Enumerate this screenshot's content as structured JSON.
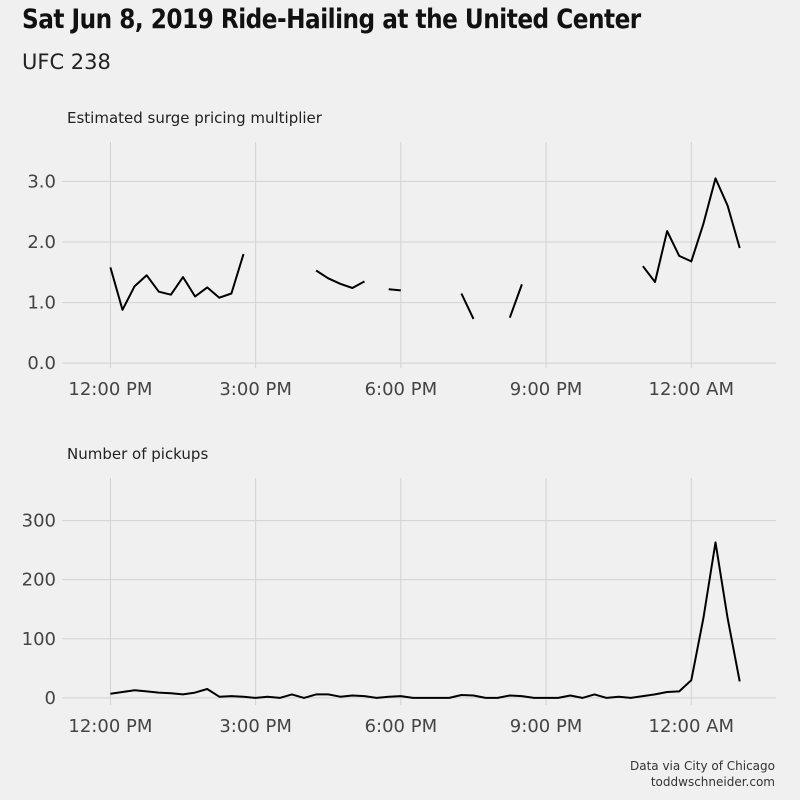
{
  "title": "Sat Jun 8, 2019 Ride-Hailing at the United Center",
  "subtitle": "UFC 238",
  "caption": [
    "Data via City of Chicago",
    "toddwschneider.com"
  ],
  "chart_data": [
    {
      "type": "line",
      "title": "Estimated surge pricing multiplier",
      "x_ticks": [
        "12:00 PM",
        "3:00 PM",
        "6:00 PM",
        "9:00 PM",
        "12:00 AM"
      ],
      "y_ticks": [
        "0.0",
        "1.0",
        "2.0",
        "3.0"
      ],
      "xlim_hours": [
        11.0,
        25.75
      ],
      "ylim": [
        -0.08,
        3.65
      ],
      "grid": true,
      "series": [
        {
          "color": "#000000",
          "values": [
            [
              12.0,
              1.58
            ],
            [
              12.25,
              0.88
            ],
            [
              12.5,
              1.27
            ],
            [
              12.75,
              1.45
            ],
            [
              13.0,
              1.18
            ],
            [
              13.25,
              1.13
            ],
            [
              13.5,
              1.42
            ],
            [
              13.75,
              1.1
            ],
            [
              14.0,
              1.25
            ],
            [
              14.25,
              1.08
            ],
            [
              14.5,
              1.15
            ],
            [
              14.75,
              1.8
            ],
            [
              15.0,
              null
            ],
            [
              15.25,
              null
            ],
            [
              15.5,
              null
            ],
            [
              15.75,
              null
            ],
            [
              16.0,
              null
            ],
            [
              16.25,
              1.53
            ],
            [
              16.5,
              1.4
            ],
            [
              16.75,
              1.31
            ],
            [
              17.0,
              1.24
            ],
            [
              17.25,
              1.35
            ],
            [
              17.5,
              null
            ],
            [
              17.75,
              1.22
            ],
            [
              18.0,
              1.2
            ],
            [
              18.25,
              null
            ],
            [
              18.5,
              null
            ],
            [
              18.75,
              null
            ],
            [
              19.0,
              null
            ],
            [
              19.25,
              1.15
            ],
            [
              19.5,
              0.73
            ],
            [
              19.75,
              null
            ],
            [
              20.0,
              null
            ],
            [
              20.25,
              0.75
            ],
            [
              20.5,
              1.3
            ],
            [
              20.75,
              null
            ],
            [
              21.0,
              null
            ],
            [
              21.25,
              null
            ],
            [
              21.5,
              null
            ],
            [
              21.75,
              null
            ],
            [
              22.0,
              null
            ],
            [
              22.25,
              null
            ],
            [
              22.5,
              null
            ],
            [
              22.75,
              null
            ],
            [
              23.0,
              1.6
            ],
            [
              23.25,
              1.34
            ],
            [
              23.5,
              2.18
            ],
            [
              23.75,
              1.77
            ],
            [
              24.0,
              1.68
            ],
            [
              24.25,
              2.3
            ],
            [
              24.5,
              3.05
            ],
            [
              24.75,
              2.6
            ],
            [
              25.0,
              1.9
            ]
          ]
        }
      ]
    },
    {
      "type": "line",
      "title": "Number of pickups",
      "x_ticks": [
        "12:00 PM",
        "3:00 PM",
        "6:00 PM",
        "9:00 PM",
        "12:00 AM"
      ],
      "y_ticks": [
        "0",
        "100",
        "200",
        "300"
      ],
      "xlim_hours": [
        11.0,
        25.75
      ],
      "ylim": [
        -12,
        372
      ],
      "grid": true,
      "series": [
        {
          "color": "#000000",
          "values": [
            [
              12.0,
              7
            ],
            [
              12.25,
              10
            ],
            [
              12.5,
              13
            ],
            [
              12.75,
              11
            ],
            [
              13.0,
              9
            ],
            [
              13.25,
              8
            ],
            [
              13.5,
              6
            ],
            [
              13.75,
              9
            ],
            [
              14.0,
              15
            ],
            [
              14.25,
              2
            ],
            [
              14.5,
              3
            ],
            [
              14.75,
              2
            ],
            [
              15.0,
              0
            ],
            [
              15.25,
              2
            ],
            [
              15.5,
              0
            ],
            [
              15.75,
              6
            ],
            [
              16.0,
              0
            ],
            [
              16.25,
              6
            ],
            [
              16.5,
              6
            ],
            [
              16.75,
              2
            ],
            [
              17.0,
              4
            ],
            [
              17.25,
              3
            ],
            [
              17.5,
              0
            ],
            [
              17.75,
              2
            ],
            [
              18.0,
              3
            ],
            [
              18.25,
              0
            ],
            [
              18.5,
              0
            ],
            [
              18.75,
              0
            ],
            [
              19.0,
              0
            ],
            [
              19.25,
              5
            ],
            [
              19.5,
              4
            ],
            [
              19.75,
              0
            ],
            [
              20.0,
              0
            ],
            [
              20.25,
              4
            ],
            [
              20.5,
              3
            ],
            [
              20.75,
              0
            ],
            [
              21.0,
              0
            ],
            [
              21.25,
              0
            ],
            [
              21.5,
              4
            ],
            [
              21.75,
              0
            ],
            [
              22.0,
              6
            ],
            [
              22.25,
              0
            ],
            [
              22.5,
              2
            ],
            [
              22.75,
              0
            ],
            [
              23.0,
              3
            ],
            [
              23.25,
              6
            ],
            [
              23.5,
              10
            ],
            [
              23.75,
              11
            ],
            [
              24.0,
              30
            ],
            [
              24.25,
              135
            ],
            [
              24.5,
              263
            ],
            [
              24.75,
              135
            ],
            [
              25.0,
              28
            ]
          ]
        }
      ]
    }
  ]
}
